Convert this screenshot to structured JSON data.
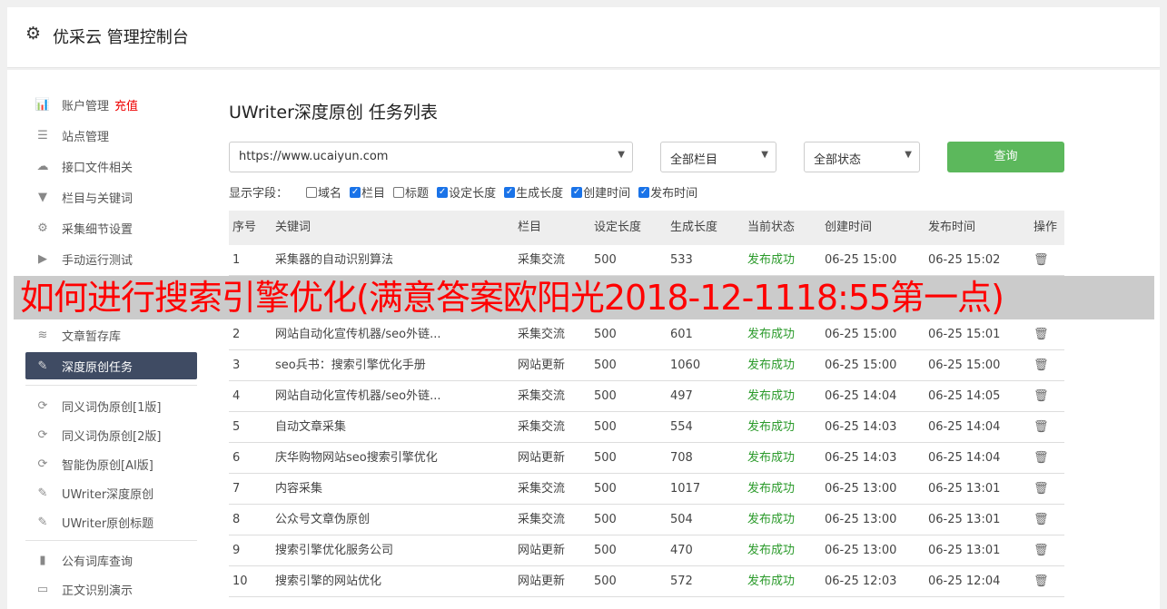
{
  "header": {
    "title": "优采云 管理控制台",
    "icon": "gear-icon"
  },
  "sidebar": {
    "items": [
      {
        "label": "账户管理",
        "extra": "充值",
        "icon": "bar-chart-icon"
      },
      {
        "label": "站点管理",
        "icon": "server-icon"
      },
      {
        "label": "接口文件相关",
        "icon": "cloud-upload-icon"
      },
      {
        "label": "栏目与关键词",
        "icon": "filter-icon"
      },
      {
        "label": "采集细节设置",
        "icon": "gears-icon"
      },
      {
        "label": "手动运行测试",
        "icon": "play-circle-icon"
      },
      {
        "label": "文章暂存库",
        "icon": "database-icon"
      },
      {
        "label": "深度原创任务",
        "icon": "edit-icon",
        "active": true
      },
      {
        "label": "同义词伪原创[1版]",
        "icon": "refresh-icon"
      },
      {
        "label": "同义词伪原创[2版]",
        "icon": "refresh-icon"
      },
      {
        "label": "智能伪原创[AI版]",
        "icon": "refresh-icon"
      },
      {
        "label": "UWriter深度原创",
        "icon": "edit-icon"
      },
      {
        "label": "UWriter原创标题",
        "icon": "edit-icon"
      },
      {
        "label": "公有词库查询",
        "icon": "book-icon"
      },
      {
        "label": "正文识别演示",
        "icon": "monitor-icon"
      }
    ]
  },
  "main": {
    "title": "UWriter深度原创 任务列表",
    "site_select": "https://www.ucaiyun.com",
    "column_select": "全部栏目",
    "status_select": "全部状态",
    "query_button": "查询",
    "fields_label": "显示字段：",
    "fields": [
      {
        "label": "域名",
        "checked": false
      },
      {
        "label": "栏目",
        "checked": true
      },
      {
        "label": "标题",
        "checked": false
      },
      {
        "label": "设定长度",
        "checked": true
      },
      {
        "label": "生成长度",
        "checked": true
      },
      {
        "label": "创建时间",
        "checked": true
      },
      {
        "label": "发布时间",
        "checked": true
      }
    ],
    "columns": [
      "序号",
      "关键词",
      "栏目",
      "设定长度",
      "生成长度",
      "当前状态",
      "创建时间",
      "发布时间",
      "操作"
    ],
    "rows": [
      [
        "1",
        "采集器的自动识别算法",
        "采集交流",
        "500",
        "533",
        "发布成功",
        "06-25 15:00",
        "06-25 15:02"
      ],
      [
        "2",
        "网站自动化宣传机器/seo外链...",
        "采集交流",
        "500",
        "601",
        "发布成功",
        "06-25 15:00",
        "06-25 15:01"
      ],
      [
        "3",
        "seo兵书：搜索引擎优化手册",
        "网站更新",
        "500",
        "1060",
        "发布成功",
        "06-25 15:00",
        "06-25 15:00"
      ],
      [
        "4",
        "网站自动化宣传机器/seo外链...",
        "采集交流",
        "500",
        "497",
        "发布成功",
        "06-25 14:04",
        "06-25 14:05"
      ],
      [
        "5",
        "自动文章采集",
        "采集交流",
        "500",
        "554",
        "发布成功",
        "06-25 14:03",
        "06-25 14:04"
      ],
      [
        "6",
        "庆华购物网站seo搜索引擎优化",
        "网站更新",
        "500",
        "708",
        "发布成功",
        "06-25 14:03",
        "06-25 14:04"
      ],
      [
        "7",
        "内容采集",
        "采集交流",
        "500",
        "1017",
        "发布成功",
        "06-25 13:00",
        "06-25 13:01"
      ],
      [
        "8",
        "公众号文章伪原创",
        "采集交流",
        "500",
        "504",
        "发布成功",
        "06-25 13:00",
        "06-25 13:01"
      ],
      [
        "9",
        "搜索引擎优化服务公司",
        "网站更新",
        "500",
        "470",
        "发布成功",
        "06-25 13:00",
        "06-25 13:01"
      ],
      [
        "10",
        "搜索引擎的网站优化",
        "网站更新",
        "500",
        "572",
        "发布成功",
        "06-25 12:03",
        "06-25 12:04"
      ]
    ]
  },
  "overlay_text": "如何进行搜索引擎优化(满意答案欧阳光2018-12-1118:55第一点)",
  "colors": {
    "accent": "#5cb85c",
    "active_sidebar": "#3f4b63",
    "status_ok": "#2a9a2a",
    "overlay_text": "#ff0000"
  }
}
